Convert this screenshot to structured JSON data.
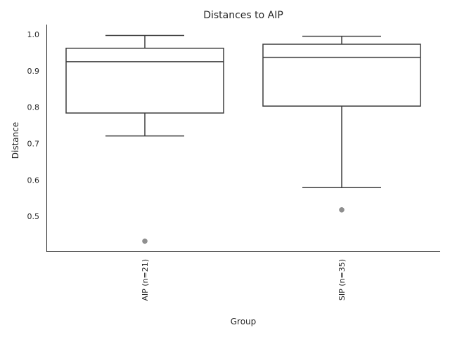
{
  "chart_data": {
    "type": "box",
    "title": "Distances to AIP",
    "xlabel": "Group",
    "ylabel": "Distance",
    "ylim": [
      0.402,
      1.027
    ],
    "yticks": [
      0.5,
      0.6,
      0.7,
      0.8,
      0.9,
      1.0
    ],
    "ytick_labels": [
      "0.5",
      "0.6",
      "0.7",
      "0.8",
      "0.9",
      "1.0"
    ],
    "grid": false,
    "categories": [
      "AIP (n=21)",
      "SIP (n=35)"
    ],
    "boxes": [
      {
        "category": "AIP (n=21)",
        "whisker_low": 0.721,
        "q1": 0.784,
        "median": 0.925,
        "q3": 0.962,
        "whisker_high": 0.997,
        "outliers": [
          0.432
        ]
      },
      {
        "category": "SIP (n=35)",
        "whisker_low": 0.579,
        "q1": 0.803,
        "median": 0.937,
        "q3": 0.973,
        "whisker_high": 0.995,
        "outliers": [
          0.518
        ]
      }
    ],
    "colors": {
      "box_edge": "#3d3d3d",
      "box_fill": "#ffffff",
      "outlier": "#8f8f8f",
      "axis": "#262626"
    }
  }
}
